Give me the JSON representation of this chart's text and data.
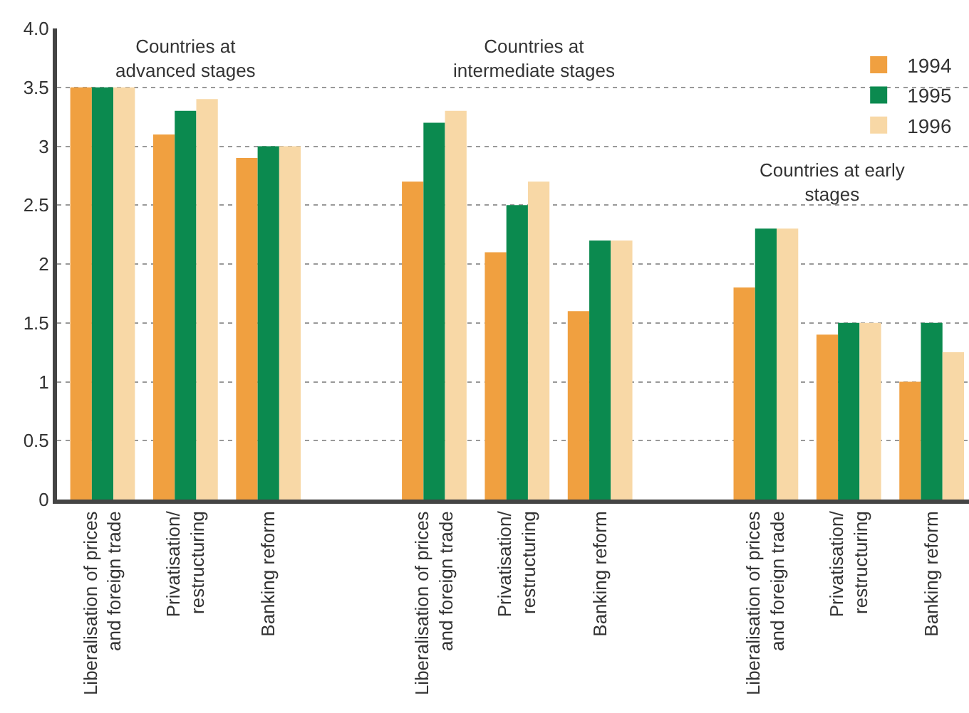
{
  "chart_data": {
    "type": "bar",
    "categories": [
      "Liberalisation of prices and foreign trade",
      "Privatisation/ restructuring",
      "Banking reform",
      null,
      "Liberalisation of prices and foreign trade",
      "Privatisation/ restructuring",
      "Banking reform",
      null,
      "Liberalisation of prices and foreign trade",
      "Privatisation/ restructuring",
      "Banking reform"
    ],
    "series": [
      {
        "name": "1994",
        "color": "#f0a040",
        "values": [
          3.5,
          3.1,
          2.9,
          null,
          2.7,
          2.1,
          1.6,
          null,
          1.8,
          1.4,
          1.0
        ]
      },
      {
        "name": "1995",
        "color": "#0b8a4f",
        "values": [
          3.5,
          3.3,
          3.0,
          null,
          3.2,
          2.5,
          2.2,
          null,
          2.3,
          1.5,
          1.5
        ]
      },
      {
        "name": "1996",
        "color": "#f8d8a6",
        "values": [
          3.5,
          3.4,
          3.0,
          null,
          3.3,
          2.7,
          2.2,
          null,
          2.3,
          1.5,
          1.25
        ]
      }
    ],
    "ylim": [
      0,
      4
    ],
    "yticks": [
      0,
      0.5,
      1,
      1.5,
      2,
      2.5,
      3,
      3.5,
      {
        "value": 4,
        "label": "4.0"
      }
    ],
    "grid": "y",
    "legend": "top right",
    "annotations": [
      "Countries at advanced stages",
      "Countries at intermediate stages",
      "Countries at early stages"
    ]
  }
}
